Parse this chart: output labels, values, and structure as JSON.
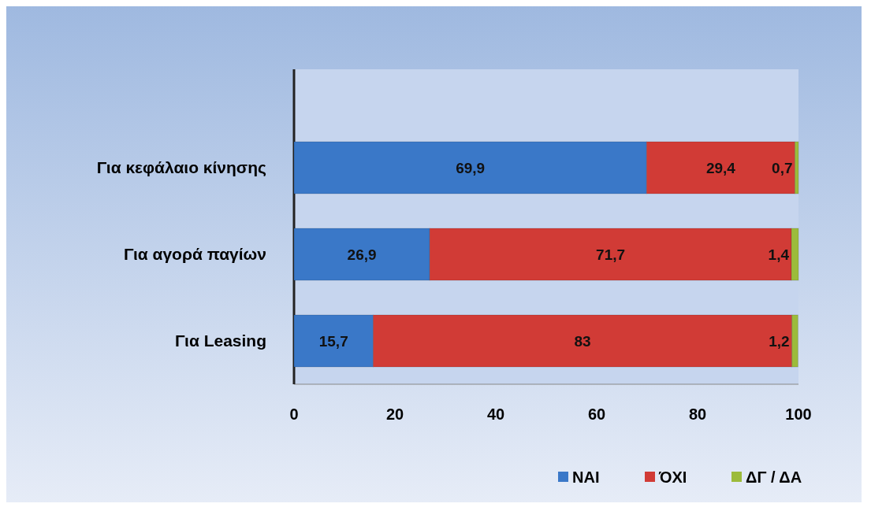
{
  "chart_data": {
    "type": "bar",
    "orientation": "horizontal",
    "stacked": true,
    "categories": [
      "Για κεφάλαιο κίνησης",
      "Για αγορά παγίων",
      "Για Leasing"
    ],
    "series": [
      {
        "name": "ΝΑΙ",
        "color": "#3a78c8",
        "values": [
          69.9,
          26.9,
          15.7
        ],
        "value_labels": [
          "69,9",
          "26,9",
          "15,7"
        ]
      },
      {
        "name": "ΌΧΙ",
        "color": "#d13b36",
        "values": [
          29.4,
          71.7,
          83
        ],
        "value_labels": [
          "29,4",
          "71,7",
          "83"
        ]
      },
      {
        "name": "ΔΓ / ΔΑ",
        "color": "#9cbb3b",
        "values": [
          0.7,
          1.4,
          1.2
        ],
        "value_labels": [
          "0,7",
          "1,4",
          "1,2"
        ]
      }
    ],
    "xlim": [
      0,
      100
    ],
    "xticks": [
      0,
      20,
      40,
      60,
      80,
      100
    ],
    "grid": false,
    "legend": "bottom right"
  }
}
